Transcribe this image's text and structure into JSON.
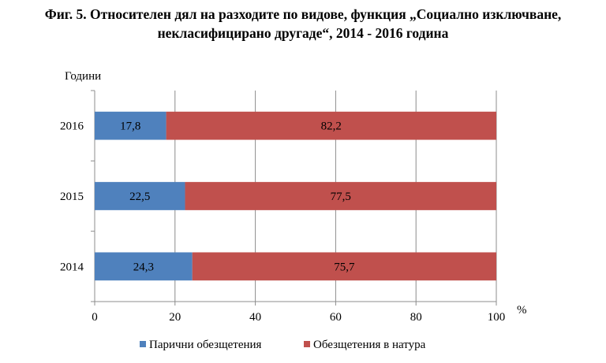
{
  "title_lines": [
    "Фиг. 5. Относителен дял на разходите по видове, функция „Социално изключване,",
    "некласифицирано другаде“, 2014 - 2016 година"
  ],
  "chart_data": {
    "type": "bar",
    "orientation": "horizontal",
    "stacked": true,
    "title": "Фиг. 5. Относителен дял на разходите по видове, функция „Социално изключване, некласифицирано другаде“, 2014 - 2016 година",
    "ylabel": "Години",
    "xlabel": "%",
    "categories": [
      "2016",
      "2015",
      "2014"
    ],
    "series": [
      {
        "name": "Парични обезщетения",
        "values": [
          17.8,
          22.5,
          24.3
        ],
        "labels": [
          "17,8",
          "22,5",
          "24,3"
        ],
        "color": "#4f81bd"
      },
      {
        "name": "Обезщетения в натура",
        "values": [
          82.2,
          77.5,
          75.7
        ],
        "labels": [
          "82,2",
          "77,5",
          "75,7"
        ],
        "color": "#c0504d"
      }
    ],
    "xlim": [
      0,
      100
    ],
    "xticks": [
      0,
      20,
      40,
      60,
      80,
      100
    ],
    "grid": true,
    "legend": "bottom"
  }
}
